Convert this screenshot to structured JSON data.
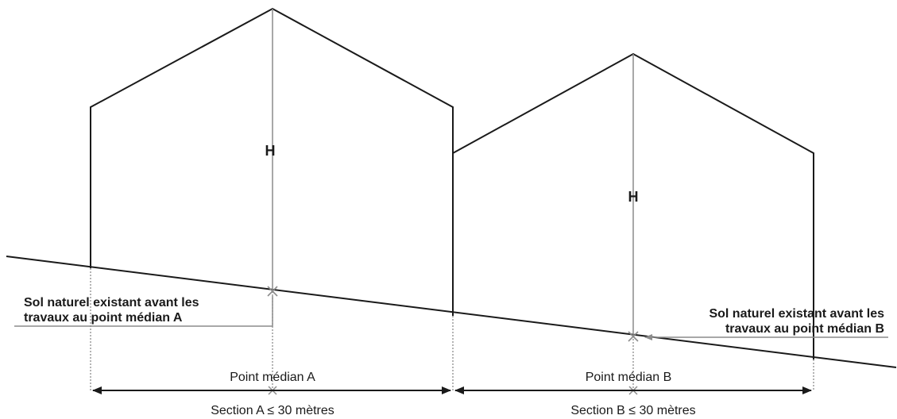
{
  "colors": {
    "outline": "#1a1a1a",
    "height_line": "#8c8c8c",
    "dotted": "#8c8c8c",
    "marker": "#8c8c8c",
    "text": "#1a1a1a"
  },
  "building_a": {
    "height_label": "H",
    "ground_label_line1": "Sol naturel existant avant les",
    "ground_label_line2": "travaux au point médian A",
    "midpoint_label": "Point médian A",
    "section_label": "Section A ≤ 30 mètres"
  },
  "building_b": {
    "height_label": "H",
    "ground_label_line1": "Sol naturel existant avant les",
    "ground_label_line2": "travaux au point médian B",
    "midpoint_label": "Point médian B",
    "section_label": "Section B ≤ 30 mètres"
  }
}
